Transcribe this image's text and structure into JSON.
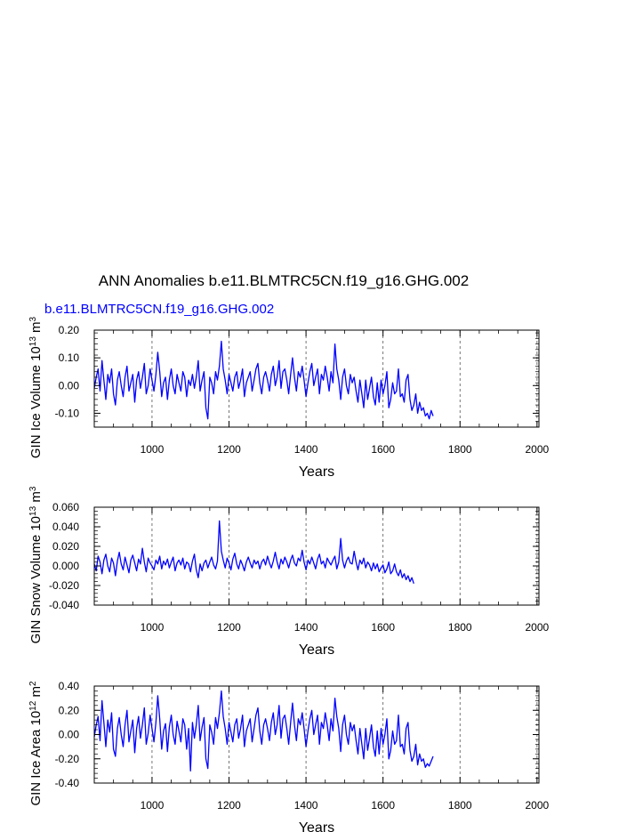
{
  "title": "ANN Anomalies b.e11.BLMTRC5CN.f19_g16.GHG.002",
  "case_label": "b.e11.BLMTRC5CN.f19_g16.GHG.002",
  "colors": {
    "series": "#0000ff",
    "axis": "#000000",
    "reference_line": "#555555"
  },
  "chart_data": [
    {
      "type": "line",
      "name": "ice-volume",
      "ylabel": {
        "prefix": "GIN Ice Volume 10",
        "exp1": "13",
        "mid": " m",
        "exp2": "3"
      },
      "xlabel": "Years",
      "xlim": [
        850,
        2005
      ],
      "ylim": [
        -0.15,
        0.2
      ],
      "xticks": [
        1000,
        1200,
        1400,
        1600,
        1800,
        2000
      ],
      "xtick_labels": [
        "1000",
        "1200",
        "1400",
        "1600",
        "1800",
        "2000"
      ],
      "yticks": [
        -0.1,
        0.0,
        0.1,
        0.2
      ],
      "ytick_labels": [
        "-0.10",
        "0.00",
        "0.10",
        "0.20"
      ],
      "vlines": [
        1000,
        1200,
        1400,
        1600,
        1800,
        2000
      ],
      "series": [
        {
          "name": "b.e11.BLMTRC5CN.f19_g16.GHG.002",
          "x_start": 850,
          "x_step": 5,
          "values": [
            -0.01,
            0.03,
            0.06,
            -0.02,
            0.09,
            0.02,
            -0.05,
            0.04,
            0.01,
            0.06,
            -0.03,
            -0.07,
            0.02,
            0.05,
            0.0,
            -0.04,
            0.03,
            0.07,
            -0.02,
            0.01,
            0.04,
            -0.06,
            0.02,
            0.05,
            -0.01,
            0.03,
            0.08,
            -0.03,
            0.0,
            0.06,
            0.02,
            -0.02,
            0.04,
            0.12,
            0.05,
            -0.04,
            0.01,
            0.03,
            -0.05,
            0.02,
            0.06,
            0.0,
            -0.03,
            0.04,
            0.01,
            -0.02,
            0.05,
            0.03,
            -0.04,
            0.02,
            0.0,
            0.04,
            -0.01,
            0.03,
            0.09,
            -0.02,
            0.02,
            0.05,
            -0.08,
            -0.12,
            0.03,
            0.01,
            -0.03,
            0.05,
            0.02,
            0.07,
            0.16,
            0.06,
            0.02,
            -0.03,
            0.04,
            0.01,
            -0.02,
            0.03,
            0.05,
            -0.01,
            0.02,
            0.06,
            -0.04,
            0.01,
            0.03,
            0.05,
            -0.02,
            0.02,
            0.06,
            0.08,
            0.01,
            -0.03,
            0.03,
            0.05,
            0.02,
            -0.02,
            0.04,
            0.07,
            0.0,
            0.03,
            0.09,
            -0.01,
            0.05,
            0.06,
            0.02,
            -0.03,
            0.04,
            0.1,
            0.03,
            -0.02,
            0.05,
            0.03,
            0.07,
            0.02,
            -0.04,
            0.01,
            0.05,
            0.08,
            0.0,
            0.03,
            0.06,
            -0.03,
            0.04,
            0.02,
            0.07,
            0.03,
            -0.02,
            0.05,
            0.01,
            0.15,
            0.06,
            0.02,
            -0.05,
            0.03,
            0.06,
            0.0,
            -0.03,
            0.04,
            0.01,
            0.03,
            -0.02,
            -0.06,
            0.02,
            -0.03,
            -0.08,
            0.02,
            -0.05,
            -0.01,
            0.03,
            -0.04,
            -0.07,
            0.01,
            -0.06,
            0.02,
            -0.03,
            0.0,
            0.05,
            -0.08,
            -0.05,
            0.01,
            -0.03,
            -0.02,
            0.06,
            -0.04,
            -0.03,
            -0.06,
            0.02,
            0.04,
            -0.05,
            -0.09,
            -0.07,
            -0.03,
            -0.1,
            -0.06,
            -0.09,
            -0.08,
            -0.11,
            -0.1,
            -0.12,
            -0.09,
            -0.11
          ]
        }
      ]
    },
    {
      "type": "line",
      "name": "snow-volume",
      "ylabel": {
        "prefix": "GIN Snow Volume 10",
        "exp1": "13",
        "mid": " m",
        "exp2": "3"
      },
      "xlabel": "Years",
      "xlim": [
        850,
        2005
      ],
      "ylim": [
        -0.04,
        0.06
      ],
      "xticks": [
        1000,
        1200,
        1400,
        1600,
        1800,
        2000
      ],
      "xtick_labels": [
        "1000",
        "1200",
        "1400",
        "1600",
        "1800",
        "2000"
      ],
      "yticks": [
        -0.04,
        -0.02,
        0.0,
        0.02,
        0.04,
        0.06
      ],
      "ytick_labels": [
        "-0.040",
        "-0.020",
        "0.000",
        "0.020",
        "0.040",
        "0.060"
      ],
      "vlines": [
        1000,
        1200,
        1400,
        1600,
        1800,
        2000
      ],
      "series": [
        {
          "name": "b.e11.BLMTRC5CN.f19_g16.GHG.002",
          "x_start": 850,
          "x_step": 5,
          "values": [
            0.002,
            -0.005,
            0.01,
            0.004,
            -0.008,
            0.006,
            0.012,
            0.0,
            -0.006,
            0.008,
            0.003,
            -0.01,
            0.005,
            0.014,
            0.002,
            -0.004,
            0.009,
            0.001,
            -0.007,
            0.006,
            0.011,
            0.003,
            -0.005,
            0.007,
            0.002,
            0.018,
            0.004,
            -0.006,
            0.008,
            0.003,
            0.0,
            -0.004,
            0.006,
            0.002,
            0.01,
            -0.003,
            0.005,
            0.001,
            0.007,
            -0.002,
            0.004,
            0.009,
            -0.005,
            0.003,
            0.006,
            0.001,
            0.008,
            -0.003,
            0.004,
            0.002,
            -0.006,
            0.005,
            0.012,
            -0.004,
            -0.012,
            0.002,
            -0.005,
            0.003,
            0.006,
            -0.002,
            0.004,
            0.009,
            0.001,
            -0.003,
            0.005,
            0.046,
            0.015,
            0.006,
            -0.002,
            0.008,
            0.003,
            -0.004,
            0.007,
            0.013,
            0.002,
            -0.003,
            0.006,
            0.001,
            -0.005,
            0.004,
            0.009,
            0.003,
            -0.002,
            0.006,
            0.002,
            0.005,
            -0.003,
            0.004,
            0.007,
            0.001,
            0.01,
            0.003,
            -0.002,
            0.005,
            0.014,
            0.004,
            -0.003,
            0.007,
            0.002,
            0.009,
            0.004,
            -0.002,
            0.006,
            0.011,
            0.003,
            0.0,
            0.008,
            0.005,
            0.016,
            0.004,
            -0.004,
            0.006,
            0.002,
            0.009,
            0.003,
            -0.003,
            0.007,
            0.012,
            0.002,
            0.005,
            -0.002,
            0.008,
            0.004,
            0.001,
            0.006,
            0.01,
            -0.003,
            0.004,
            0.028,
            0.006,
            -0.002,
            0.005,
            0.009,
            0.003,
            0.002,
            0.015,
            0.004,
            -0.004,
            0.006,
            0.002,
            0.008,
            -0.002,
            0.004,
            0.001,
            -0.005,
            0.003,
            -0.003,
            0.002,
            -0.006,
            -0.002,
            0.001,
            -0.007,
            -0.003,
            0.004,
            -0.008,
            -0.005,
            0.002,
            -0.006,
            -0.01,
            -0.004,
            -0.012,
            -0.008,
            -0.014,
            -0.01,
            -0.016,
            -0.012,
            -0.018
          ]
        }
      ]
    },
    {
      "type": "line",
      "name": "ice-area",
      "ylabel": {
        "prefix": "GIN Ice Area 10",
        "exp1": "12",
        "mid": " m",
        "exp2": "2"
      },
      "xlabel": "Years",
      "xlim": [
        850,
        2005
      ],
      "ylim": [
        -0.4,
        0.4
      ],
      "xticks": [
        1000,
        1200,
        1400,
        1600,
        1800,
        2000
      ],
      "xtick_labels": [
        "1000",
        "1200",
        "1400",
        "1600",
        "1800",
        "2000"
      ],
      "yticks": [
        -0.4,
        -0.2,
        0.0,
        0.2,
        0.4
      ],
      "ytick_labels": [
        "-0.40",
        "-0.20",
        "0.00",
        "0.20",
        "0.40"
      ],
      "vlines": [
        1000,
        1200,
        1400,
        1600,
        1800,
        2000
      ],
      "series": [
        {
          "name": "b.e11.BLMTRC5CN.f19_g16.GHG.002",
          "x_start": 850,
          "x_step": 5,
          "values": [
            -0.02,
            0.08,
            0.15,
            -0.05,
            0.28,
            0.1,
            -0.1,
            0.12,
            0.02,
            0.18,
            -0.12,
            -0.18,
            0.05,
            0.14,
            0.0,
            -0.1,
            0.08,
            0.2,
            -0.06,
            0.03,
            0.12,
            -0.15,
            0.05,
            0.15,
            -0.03,
            0.08,
            0.22,
            -0.08,
            0.01,
            0.16,
            0.05,
            -0.06,
            0.1,
            0.32,
            0.13,
            -0.12,
            0.03,
            0.09,
            -0.14,
            0.06,
            0.16,
            0.0,
            -0.08,
            0.11,
            0.03,
            -0.06,
            0.13,
            0.08,
            -0.12,
            0.05,
            -0.3,
            0.1,
            -0.03,
            0.08,
            0.24,
            -0.05,
            0.06,
            0.14,
            -0.2,
            -0.28,
            0.08,
            0.02,
            -0.08,
            0.14,
            0.05,
            0.18,
            0.36,
            0.15,
            0.05,
            -0.08,
            0.1,
            0.02,
            -0.06,
            0.08,
            0.13,
            -0.03,
            0.05,
            0.16,
            -0.1,
            0.03,
            0.08,
            0.13,
            -0.06,
            0.05,
            0.16,
            0.22,
            0.03,
            -0.08,
            0.08,
            0.13,
            0.05,
            -0.05,
            0.1,
            0.18,
            0.0,
            0.08,
            0.24,
            -0.03,
            0.13,
            0.16,
            0.05,
            -0.08,
            0.1,
            0.26,
            0.08,
            -0.05,
            0.13,
            0.08,
            0.18,
            0.05,
            -0.1,
            0.03,
            0.13,
            0.2,
            0.0,
            0.08,
            0.16,
            -0.08,
            0.1,
            0.05,
            0.18,
            0.08,
            -0.05,
            0.13,
            0.03,
            0.3,
            0.15,
            0.05,
            -0.14,
            0.08,
            0.16,
            0.0,
            -0.08,
            0.1,
            0.03,
            0.08,
            -0.05,
            -0.16,
            0.05,
            -0.08,
            -0.2,
            0.05,
            -0.13,
            -0.03,
            0.08,
            -0.1,
            -0.18,
            0.03,
            -0.16,
            0.05,
            -0.08,
            0.0,
            0.13,
            -0.2,
            -0.13,
            0.03,
            -0.08,
            -0.05,
            0.16,
            -0.1,
            -0.08,
            -0.16,
            0.05,
            0.1,
            -0.13,
            -0.22,
            -0.18,
            -0.08,
            -0.25,
            -0.16,
            -0.22,
            -0.2,
            -0.27,
            -0.24,
            -0.26,
            -0.22,
            -0.18
          ]
        }
      ]
    }
  ]
}
